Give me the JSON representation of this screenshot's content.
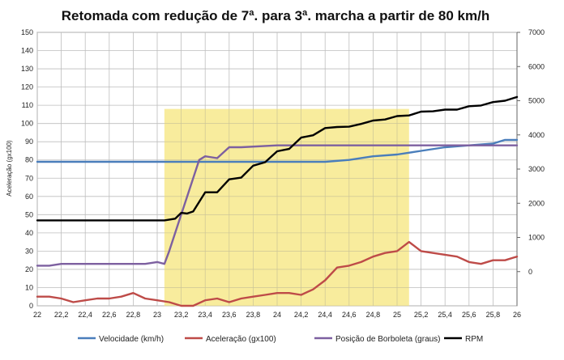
{
  "chart_data": {
    "type": "line",
    "title": "Retomada com redução de 7ª. para 3ª. marcha a partir de 80 km/h",
    "xlabel": "",
    "ylabel": "Aceleração (gx100)",
    "xlim": [
      22,
      26
    ],
    "ylim": [
      0,
      150
    ],
    "y2lim": [
      -1000,
      7000
    ],
    "x_ticks": [
      "22",
      "22,2",
      "22,4",
      "22,6",
      "22,8",
      "23",
      "23,2",
      "23,4",
      "23,6",
      "23,8",
      "24",
      "24,2",
      "24,4",
      "24,6",
      "24,8",
      "25",
      "25,2",
      "25,4",
      "25,6",
      "25,8",
      "26"
    ],
    "y_ticks": [
      "0",
      "10",
      "20",
      "30",
      "40",
      "50",
      "60",
      "70",
      "80",
      "90",
      "100",
      "110",
      "120",
      "130",
      "140",
      "150"
    ],
    "y2_ticks": [
      "0",
      "1000",
      "2000",
      "3000",
      "4000",
      "5000",
      "6000",
      "7000"
    ],
    "highlight": {
      "x_start": 23.06,
      "x_end": 25.1,
      "y_top": 108,
      "color": "#f7e98c"
    },
    "series": [
      {
        "name": "Velocidade (km/h)",
        "axis": "left",
        "color": "#4a7ebb",
        "x": [
          22.0,
          23.0,
          23.3,
          23.6,
          24.0,
          24.4,
          24.6,
          24.8,
          25.0,
          25.2,
          25.4,
          25.6,
          25.8,
          25.9,
          26.0
        ],
        "y": [
          79,
          79,
          79,
          79,
          79,
          79,
          80,
          82,
          83,
          85,
          87,
          88,
          89,
          91,
          91
        ]
      },
      {
        "name": "Aceleração (gx100)",
        "axis": "left",
        "color": "#be4b48",
        "x": [
          22.0,
          22.1,
          22.2,
          22.3,
          22.4,
          22.5,
          22.6,
          22.7,
          22.8,
          22.9,
          23.0,
          23.1,
          23.2,
          23.3,
          23.4,
          23.5,
          23.6,
          23.7,
          23.8,
          23.9,
          24.0,
          24.1,
          24.2,
          24.3,
          24.4,
          24.5,
          24.6,
          24.7,
          24.8,
          24.9,
          25.0,
          25.1,
          25.2,
          25.3,
          25.4,
          25.5,
          25.6,
          25.7,
          25.8,
          25.9,
          26.0
        ],
        "y": [
          5,
          5,
          4,
          2,
          3,
          4,
          4,
          5,
          7,
          4,
          3,
          2,
          0,
          0,
          3,
          4,
          2,
          4,
          5,
          6,
          7,
          7,
          6,
          9,
          14,
          21,
          22,
          24,
          27,
          29,
          30,
          35,
          30,
          29,
          28,
          27,
          24,
          23,
          25,
          25,
          27
        ]
      },
      {
        "name": "Posição de Borboleta (graus)",
        "axis": "left",
        "color": "#7d60a0",
        "x": [
          22.0,
          22.1,
          22.2,
          22.4,
          22.6,
          22.8,
          22.9,
          23.0,
          23.06,
          23.1,
          23.2,
          23.3,
          23.35,
          23.4,
          23.5,
          23.55,
          23.6,
          23.7,
          24.0,
          24.5,
          25.0,
          25.5,
          26.0
        ],
        "y": [
          22,
          22,
          23,
          23,
          23,
          23,
          23,
          24,
          23,
          30,
          50,
          70,
          80,
          82,
          81,
          84,
          87,
          87,
          88,
          88,
          88,
          88,
          88
        ]
      },
      {
        "name": "RPM",
        "axis": "right",
        "color": "#000000",
        "x": [
          22.0,
          22.5,
          23.0,
          23.06,
          23.15,
          23.2,
          23.25,
          23.3,
          23.4,
          23.5,
          23.6,
          23.7,
          23.8,
          23.9,
          24.0,
          24.1,
          24.2,
          24.3,
          24.4,
          24.5,
          24.6,
          24.7,
          24.8,
          24.9,
          25.0,
          25.1,
          25.2,
          25.3,
          25.4,
          25.5,
          25.6,
          25.7,
          25.8,
          25.9,
          26.0
        ],
        "y": [
          1500,
          1500,
          1500,
          1500,
          1550,
          1720,
          1700,
          1760,
          2320,
          2320,
          2700,
          2750,
          3100,
          3200,
          3520,
          3590,
          3920,
          3990,
          4200,
          4230,
          4240,
          4320,
          4420,
          4450,
          4550,
          4570,
          4680,
          4690,
          4740,
          4740,
          4840,
          4860,
          4960,
          5000,
          5110
        ]
      }
    ]
  },
  "legend": {
    "items": [
      "Velocidade (km/h)",
      "Aceleração (gx100)",
      "Posição de Borboleta (graus)",
      "RPM"
    ]
  }
}
